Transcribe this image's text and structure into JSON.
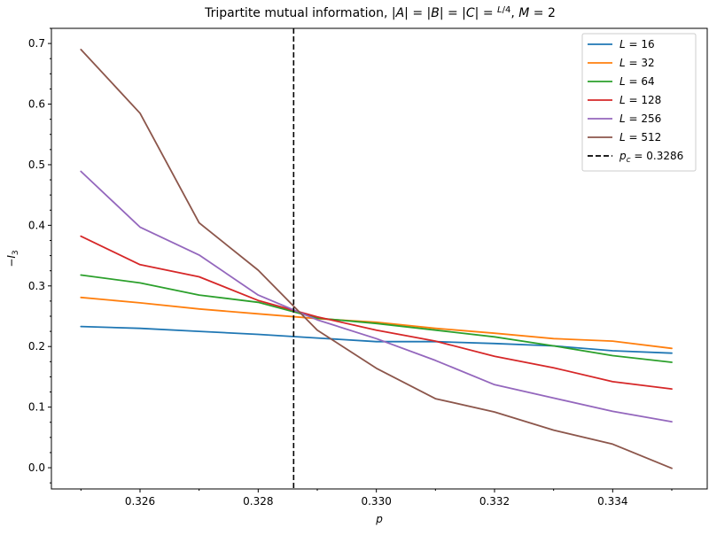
{
  "chart_data": {
    "type": "line",
    "title": "Tripartite mutual information, |A| = |B| = |C| = L/4, M = 2",
    "title_parts": {
      "prefix": "Tripartite mutual information, ",
      "bars_equal": "|A| = |B| = |C| = ",
      "frac_num": "L",
      "frac_den": "4",
      "suffix_sep": ", ",
      "m_var": "M",
      "m_eq": " = 2"
    },
    "xlabel": "p",
    "ylabel": "−I",
    "ylabel_sub": "3",
    "xlim": [
      0.3245,
      0.3356
    ],
    "ylim": [
      -0.035,
      0.725
    ],
    "x_ticks": [
      0.326,
      0.328,
      0.33,
      0.332,
      0.334
    ],
    "x_tick_labels": [
      "0.326",
      "0.328",
      "0.330",
      "0.332",
      "0.334"
    ],
    "x_minor_ticks": [
      0.325,
      0.327,
      0.329,
      0.331,
      0.333,
      0.335
    ],
    "y_ticks": [
      0.0,
      0.1,
      0.2,
      0.3,
      0.4,
      0.5,
      0.6,
      0.7
    ],
    "y_tick_labels": [
      "0.0",
      "0.1",
      "0.2",
      "0.3",
      "0.4",
      "0.5",
      "0.6",
      "0.7"
    ],
    "y_minor_ticks": [
      -0.025,
      0.025,
      0.05,
      0.075,
      0.125,
      0.15,
      0.175,
      0.225,
      0.25,
      0.275,
      0.325,
      0.35,
      0.375,
      0.425,
      0.45,
      0.475,
      0.525,
      0.55,
      0.575,
      0.625,
      0.65,
      0.675,
      0.725
    ],
    "grid": false,
    "legend_position": "top-right",
    "x": [
      0.325,
      0.326,
      0.327,
      0.328,
      0.329,
      0.33,
      0.331,
      0.332,
      0.333,
      0.334,
      0.335
    ],
    "series": [
      {
        "name": "L = 16",
        "name_var": "L",
        "name_rest": " = 16",
        "color": "#1f77b4",
        "values": [
          0.233,
          0.23,
          0.225,
          0.22,
          0.214,
          0.208,
          0.208,
          0.205,
          0.201,
          0.193,
          0.189
        ]
      },
      {
        "name": "L = 32",
        "name_var": "L",
        "name_rest": " = 32",
        "color": "#ff7f0e",
        "values": [
          0.281,
          0.272,
          0.262,
          0.254,
          0.246,
          0.24,
          0.23,
          0.222,
          0.213,
          0.209,
          0.197
        ]
      },
      {
        "name": "L = 64",
        "name_var": "L",
        "name_rest": " = 64",
        "color": "#2ca02c",
        "values": [
          0.318,
          0.305,
          0.285,
          0.273,
          0.247,
          0.238,
          0.227,
          0.216,
          0.201,
          0.185,
          0.174
        ]
      },
      {
        "name": "L = 128",
        "name_var": "L",
        "name_rest": " = 128",
        "color": "#d62728",
        "values": [
          0.382,
          0.335,
          0.315,
          0.276,
          0.249,
          0.227,
          0.209,
          0.184,
          0.165,
          0.142,
          0.13
        ]
      },
      {
        "name": "L = 256",
        "name_var": "L",
        "name_rest": " = 256",
        "color": "#9467bd",
        "values": [
          0.489,
          0.397,
          0.351,
          0.285,
          0.244,
          0.213,
          0.177,
          0.137,
          0.115,
          0.093,
          0.076
        ]
      },
      {
        "name": "L = 512",
        "name_var": "L",
        "name_rest": " = 512",
        "color": "#8c564b",
        "values": [
          0.69,
          0.585,
          0.404,
          0.326,
          0.227,
          0.164,
          0.114,
          0.092,
          0.062,
          0.039,
          -0.001
        ]
      }
    ],
    "critical_line": {
      "x": 0.3286,
      "label": "p_c = 0.3286",
      "label_var": "p",
      "label_sub": "c",
      "label_rest": " = 0.3286",
      "color": "#000000",
      "style": "dashed"
    }
  }
}
